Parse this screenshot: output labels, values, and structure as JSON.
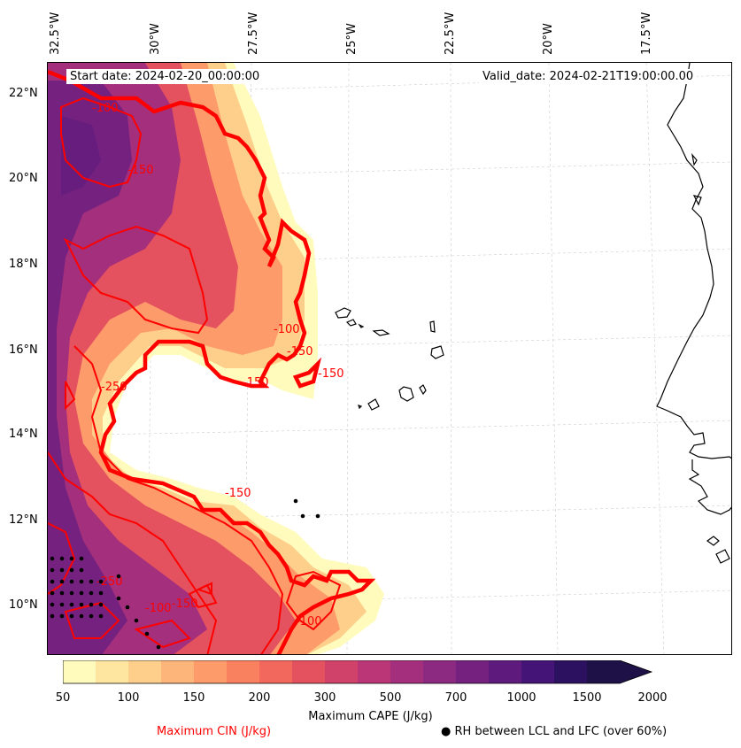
{
  "map": {
    "lon_labels": [
      "32.5°W",
      "30°W",
      "27.5°W",
      "25°W",
      "22.5°W",
      "20°W",
      "17.5°W"
    ],
    "lat_labels": [
      "22°N",
      "20°N",
      "18°N",
      "16°N",
      "14°N",
      "12°N",
      "10°N"
    ],
    "start_date": "Start date: 2024-02-20_00:00:00",
    "valid_date": "Valid_date: 2024-02-21T19:00:00.00",
    "contour_labels": [
      "-100",
      "-150",
      "-100",
      "-150",
      "-250",
      "-150",
      "-250",
      "-100",
      "-150",
      "-150",
      "-150",
      "-100"
    ],
    "colors": {
      "cin_contour": "#ff0000",
      "coastline": "#000000"
    }
  },
  "colorbar": {
    "tick_labels": [
      "50",
      "100",
      "150",
      "200",
      "300",
      "500",
      "700",
      "1000",
      "1500",
      "2000"
    ],
    "colors": [
      "#fefbbd",
      "#fee5a0",
      "#fecf8a",
      "#feb57a",
      "#fd9b6b",
      "#f98160",
      "#f3685c",
      "#e5525f",
      "#d1426b",
      "#bb3676",
      "#a32f7d",
      "#8c2981",
      "#74217f",
      "#5e1a7c",
      "#451477",
      "#2c1160",
      "#1d1147"
    ],
    "label": "Maximum CAPE (J/kg)"
  },
  "legend": {
    "cin_label": "Maximum CIN (J/kg)",
    "rh_label": "● RH between LCL and LFC (over 60%)",
    "cin_color": "#ff0000"
  }
}
